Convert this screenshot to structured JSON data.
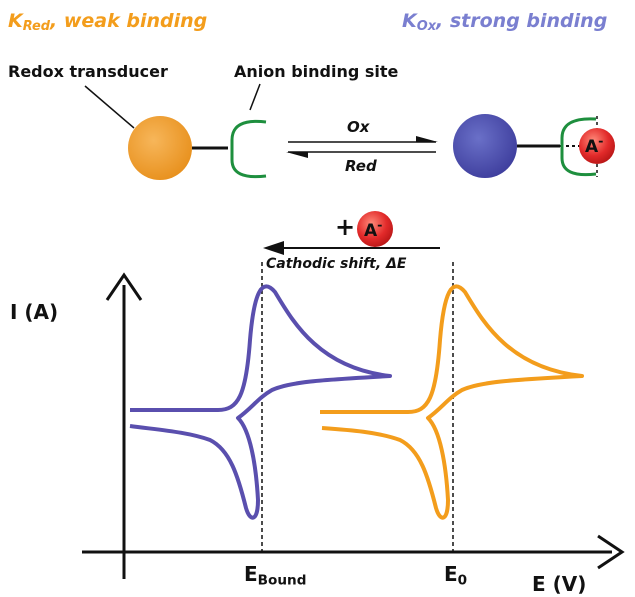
{
  "colors": {
    "orange": "#f39d1c",
    "blue": "#5a4fae",
    "green": "#1e8f3e",
    "red": "#e0282e"
  },
  "top": {
    "kred": {
      "k": "K",
      "sub": "Red",
      "rest": ", weak binding"
    },
    "kox": {
      "k": "K",
      "sub": "Ox",
      "rest": ", strong binding"
    },
    "redox_label": "Redox transducer",
    "anion_label": "Anion binding site",
    "ox": "Ox",
    "red": "Red",
    "anion": "A",
    "anion_charge": "-"
  },
  "plot": {
    "plus": "+",
    "shift": "Cathodic shift, ΔE",
    "ylabel": "I (A)",
    "xlabel": "E (V)",
    "ebound": {
      "main": "E",
      "sub": "Bound"
    },
    "e0": {
      "main": "E",
      "sub": "0"
    }
  }
}
